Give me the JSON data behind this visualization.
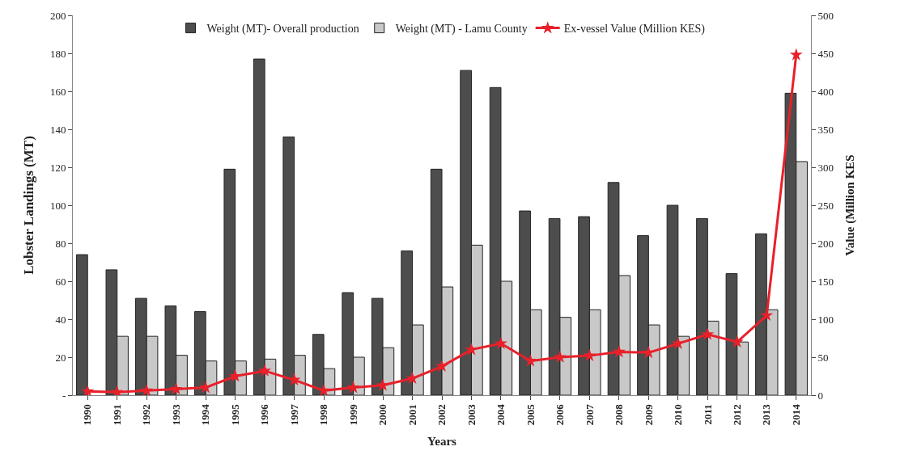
{
  "chart_data": {
    "type": "bar",
    "xlabel": "Years",
    "ylabel": "Lobster Landings (MT)",
    "y2label": "Value (Million KES",
    "categories": [
      "1990",
      "1991",
      "1992",
      "1993",
      "1994",
      "1995",
      "1996",
      "1997",
      "1998",
      "1999",
      "2000",
      "2001",
      "2002",
      "2003",
      "2004",
      "2005",
      "2006",
      "2007",
      "2008",
      "2009",
      "2010",
      "2011",
      "2012",
      "2013",
      "2014"
    ],
    "series": [
      {
        "name": "Weight (MT)- Overall production",
        "color": "#4d4d4d",
        "values": [
          74,
          66,
          51,
          47,
          44,
          119,
          177,
          136,
          32,
          54,
          51,
          76,
          119,
          171,
          162,
          97,
          93,
          94,
          112,
          84,
          100,
          93,
          64,
          85,
          159
        ]
      },
      {
        "name": "Weight (MT) - Lamu County",
        "color": "#c8c8c8",
        "values": [
          null,
          31,
          31,
          21,
          18,
          18,
          19,
          21,
          14,
          20,
          25,
          37,
          57,
          79,
          60,
          45,
          41,
          45,
          63,
          37,
          31,
          39,
          28,
          45,
          123
        ]
      },
      {
        "name": "Ex-vessel Value (Million KES)",
        "type": "line",
        "axis": "y2",
        "color": "#e8202a",
        "marker": "star",
        "values": [
          5,
          4,
          6,
          8,
          10,
          25,
          32,
          20,
          6,
          10,
          13,
          22,
          38,
          60,
          68,
          45,
          50,
          52,
          57,
          56,
          68,
          80,
          70,
          105,
          448
        ]
      }
    ],
    "ylim": [
      0,
      200
    ],
    "yticks": [
      {
        "value": 0,
        "label": "-"
      },
      20,
      40,
      60,
      80,
      100,
      120,
      140,
      160,
      180,
      200
    ],
    "y2lim": [
      0,
      500
    ],
    "y2ticks": [
      0,
      50,
      100,
      150,
      200,
      250,
      300,
      350,
      400,
      450,
      500
    ],
    "legend": "top"
  }
}
